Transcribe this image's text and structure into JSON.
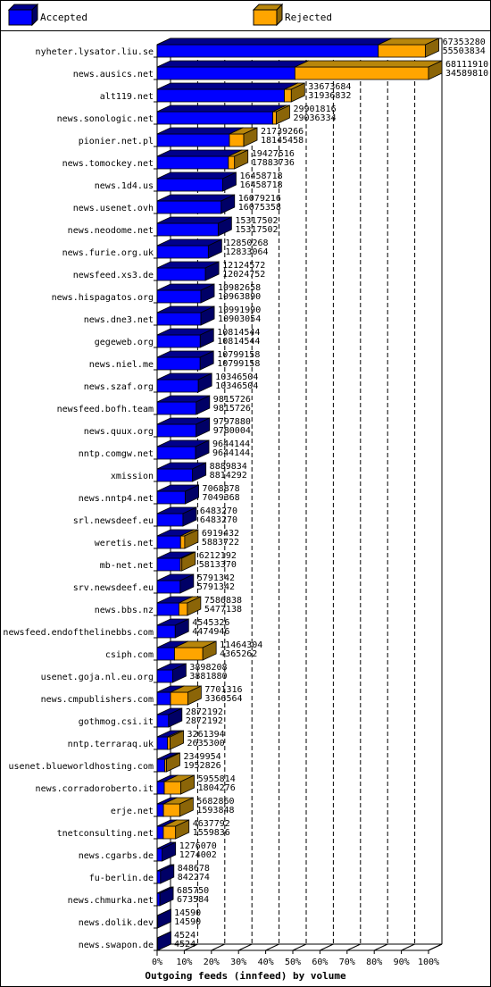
{
  "chart_data": {
    "type": "bar",
    "orientation": "horizontal",
    "stacked": true,
    "title": "",
    "xlabel": "Outgoing feeds (innfeed) by volume",
    "ylabel": "",
    "x_ticks": [
      "0%",
      "10%",
      "20%",
      "30%",
      "40%",
      "50%",
      "60%",
      "70%",
      "80%",
      "90%",
      "100%"
    ],
    "xlim": [
      0,
      100
    ],
    "grid": "vertical dashed",
    "legend_position": "top",
    "series": [
      {
        "name": "Accepted",
        "color": "#0000ff"
      },
      {
        "name": "Rejected",
        "color": "#ffa500"
      }
    ],
    "categories": [
      "nyheter.lysator.liu.se",
      "news.ausics.net",
      "alt119.net",
      "news.sonologic.net",
      "pionier.net.pl",
      "news.tomockey.net",
      "news.1d4.us",
      "news.usenet.ovh",
      "news.neodome.net",
      "news.furie.org.uk",
      "newsfeed.xs3.de",
      "news.hispagatos.org",
      "news.dne3.net",
      "gegeweb.org",
      "news.niel.me",
      "news.szaf.org",
      "newsfeed.bofh.team",
      "news.quux.org",
      "nntp.comgw.net",
      "xmission",
      "news.nntp4.net",
      "srl.newsdeef.eu",
      "weretis.net",
      "mb-net.net",
      "srv.newsdeef.eu",
      "news.bbs.nz",
      "newsfeed.endofthelinebbs.com",
      "csiph.com",
      "usenet.goja.nl.eu.org",
      "news.cmpublishers.com",
      "gothmog.csi.it",
      "nntp.terraraq.uk",
      "usenet.blueworldhosting.com",
      "news.corradoroberto.it",
      "erje.net",
      "tnetconsulting.net",
      "news.cgarbs.de",
      "fu-berlin.de",
      "news.chmurka.net",
      "news.dolik.dev",
      "news.swapon.de"
    ],
    "rows": [
      {
        "total": "67353280",
        "accepted": "55503834"
      },
      {
        "total": "68111910",
        "accepted": "34589810"
      },
      {
        "total": "33673684",
        "accepted": "31936832"
      },
      {
        "total": "29901816",
        "accepted": "29036334"
      },
      {
        "total": "21739266",
        "accepted": "18145458"
      },
      {
        "total": "19427516",
        "accepted": "17883736"
      },
      {
        "total": "16458718",
        "accepted": "16458718"
      },
      {
        "total": "16079216",
        "accepted": "16075358"
      },
      {
        "total": "15317502",
        "accepted": "15317502"
      },
      {
        "total": "12850268",
        "accepted": "12833064"
      },
      {
        "total": "12124572",
        "accepted": "12024752"
      },
      {
        "total": "10982658",
        "accepted": "10963890"
      },
      {
        "total": "10991990",
        "accepted": "10903054"
      },
      {
        "total": "10814544",
        "accepted": "10814544"
      },
      {
        "total": "10799158",
        "accepted": "10799158"
      },
      {
        "total": "10346504",
        "accepted": "10346504"
      },
      {
        "total": "9815726",
        "accepted": "9815726"
      },
      {
        "total": "9797880",
        "accepted": "9780004"
      },
      {
        "total": "9644144",
        "accepted": "9644144"
      },
      {
        "total": "8889834",
        "accepted": "8814292"
      },
      {
        "total": "7068878",
        "accepted": "7049368"
      },
      {
        "total": "6483270",
        "accepted": "6483270"
      },
      {
        "total": "6919432",
        "accepted": "5883722"
      },
      {
        "total": "6212192",
        "accepted": "5813370"
      },
      {
        "total": "5791342",
        "accepted": "5791342"
      },
      {
        "total": "7586838",
        "accepted": "5477138"
      },
      {
        "total": "4545326",
        "accepted": "4474946"
      },
      {
        "total": "11464304",
        "accepted": "4365262"
      },
      {
        "total": "3898208",
        "accepted": "3881880"
      },
      {
        "total": "7701316",
        "accepted": "3366564"
      },
      {
        "total": "2872192",
        "accepted": "2872192"
      },
      {
        "total": "3261394",
        "accepted": "2635300"
      },
      {
        "total": "2349954",
        "accepted": "1952826"
      },
      {
        "total": "5955814",
        "accepted": "1804276"
      },
      {
        "total": "5682860",
        "accepted": "1593848"
      },
      {
        "total": "4637792",
        "accepted": "1559836"
      },
      {
        "total": "1276070",
        "accepted": "1274002"
      },
      {
        "total": "848678",
        "accepted": "842274"
      },
      {
        "total": "685750",
        "accepted": "673584"
      },
      {
        "total": "14590",
        "accepted": "14590"
      },
      {
        "total": "4524",
        "accepted": "4524"
      }
    ]
  }
}
